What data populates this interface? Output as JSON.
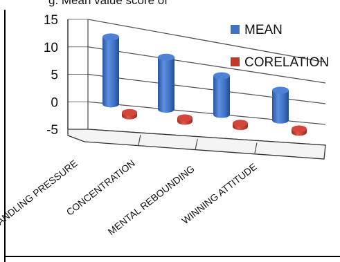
{
  "header": {
    "clipped_caption": "g. Mean value score of"
  },
  "chart_data": {
    "type": "bar",
    "categories": [
      "HANDLING PRESSURE",
      "CONCENTRATION",
      "MENTAL REBOUNDING",
      "WINNING ATTITUDE"
    ],
    "series": [
      {
        "name": "MEAN",
        "values": [
          12.5,
          10.3,
          8.2,
          6.8
        ],
        "color": "#3f73c7"
      },
      {
        "name": "CORELATION",
        "values": [
          0.3,
          0.3,
          0.3,
          0.3
        ],
        "color": "#c0392b"
      }
    ],
    "ylim": [
      -5,
      15
    ],
    "yticks": [
      "15",
      "10",
      "5",
      "0",
      "-5"
    ],
    "grid": true,
    "legend": "right",
    "style": "3d-cylinder"
  }
}
